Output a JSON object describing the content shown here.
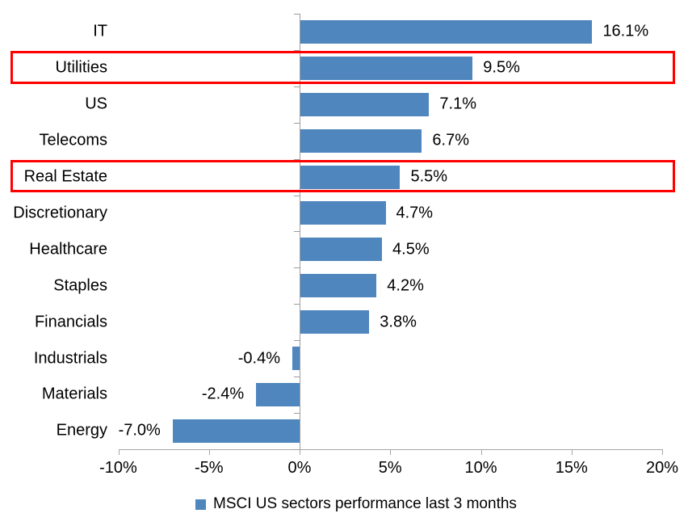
{
  "chart_data": {
    "type": "bar",
    "orientation": "horizontal",
    "title": "",
    "categories": [
      "IT",
      "Utilities",
      "US",
      "Telecoms",
      "Real Estate",
      "Discretionary",
      "Healthcare",
      "Staples",
      "Financials",
      "Industrials",
      "Materials",
      "Energy"
    ],
    "values": [
      16.1,
      9.5,
      7.1,
      6.7,
      5.5,
      4.7,
      4.5,
      4.2,
      3.8,
      -0.4,
      -2.4,
      -7.0
    ],
    "data_labels": [
      "16.1%",
      "9.5%",
      "7.1%",
      "6.7%",
      "5.5%",
      "4.7%",
      "4.5%",
      "4.2%",
      "3.8%",
      "-0.4%",
      "-2.4%",
      "-7.0%"
    ],
    "x_ticks": [
      -10,
      -5,
      0,
      5,
      10,
      15,
      20
    ],
    "x_tick_labels": [
      "-10%",
      "-5%",
      "0%",
      "5%",
      "10%",
      "15%",
      "20%"
    ],
    "xlim": [
      -10,
      20
    ],
    "grid": "off",
    "legend": "MSCI US sectors performance last 3 months",
    "legend_position": "bottom-center",
    "highlighted_categories": [
      "Utilities",
      "Real Estate"
    ],
    "colors": {
      "bar": "#4F86BD",
      "highlight_border": "#FF0000",
      "axis": "#A6A6A6",
      "text": "#000000"
    }
  }
}
